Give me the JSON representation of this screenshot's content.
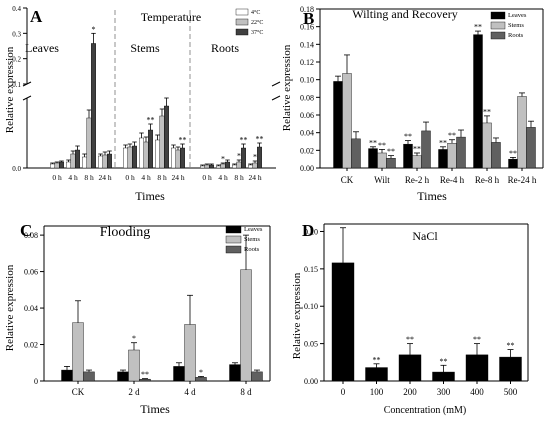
{
  "chart_data": [
    {
      "type": "bar",
      "panel_letter": "A",
      "title": "Temperature",
      "xlabel": "Times",
      "ylabel": "Relative expression",
      "legend": [
        "4°C",
        "22°C",
        "37°C"
      ],
      "legend_position": "top-right",
      "group_labels": [
        "Leaves",
        "Stems",
        "Roots"
      ],
      "categories": [
        "0 h",
        "4 h",
        "8 h",
        "24 h",
        "0 h",
        "4 h",
        "8 h",
        "24 h",
        "0 h",
        "4 h",
        "8 h",
        "24 h"
      ],
      "yticks": [
        "0.0",
        "0.1",
        "0.2",
        "0.3",
        "0.4"
      ],
      "ylim": [
        0,
        0.4
      ],
      "axis_break": true,
      "colors": [
        "#ffffff",
        "#c0c0c0",
        "#404040"
      ],
      "series": [
        {
          "name": "4°C",
          "values": [
            0.004,
            0.006,
            0.011,
            0.012,
            0.02,
            0.03,
            0.028,
            0.02,
            0.002,
            0.002,
            0.003,
            0.003
          ],
          "errors": [
            0.001,
            0.002,
            0.003,
            0.002,
            0.003,
            0.005,
            0.005,
            0.003,
            0.001,
            0.001,
            0.001,
            0.001
          ]
        },
        {
          "name": "22°C",
          "values": [
            0.005,
            0.014,
            0.05,
            0.013,
            0.021,
            0.026,
            0.052,
            0.018,
            0.003,
            0.004,
            0.006,
            0.005
          ],
          "errors": [
            0.001,
            0.003,
            0.008,
            0.003,
            0.003,
            0.005,
            0.007,
            0.003,
            0.001,
            0.001,
            0.002,
            0.002
          ]
        },
        {
          "name": "37°C",
          "values": [
            0.006,
            0.018,
            0.26,
            0.014,
            0.022,
            0.038,
            0.062,
            0.02,
            0.003,
            0.006,
            0.02,
            0.021
          ],
          "errors": [
            0.001,
            0.004,
            0.04,
            0.003,
            0.004,
            0.006,
            0.008,
            0.004,
            0.001,
            0.002,
            0.004,
            0.004
          ]
        }
      ],
      "significance": [
        {
          "series": 2,
          "index": 2,
          "mark": "*"
        },
        {
          "series": 2,
          "index": 5,
          "mark": "**"
        },
        {
          "series": 2,
          "index": 7,
          "mark": "**"
        },
        {
          "series": 1,
          "index": 9,
          "mark": "*"
        },
        {
          "series": 1,
          "index": 10,
          "mark": "*"
        },
        {
          "series": 2,
          "index": 10,
          "mark": "**"
        },
        {
          "series": 1,
          "index": 11,
          "mark": "*"
        },
        {
          "series": 2,
          "index": 11,
          "mark": "**"
        }
      ]
    },
    {
      "type": "bar",
      "panel_letter": "B",
      "title": "Wilting and Recovery",
      "xlabel": "Times",
      "ylabel": "Relative expression",
      "legend": [
        "Leaves",
        "Stems",
        "Roots"
      ],
      "legend_position": "top-right",
      "categories": [
        "CK",
        "Wilt",
        "Re-2 h",
        "Re-4 h",
        "Re-8 h",
        "Re-24 h"
      ],
      "yticks": [
        "0.00",
        "0.02",
        "0.04",
        "0.06",
        "0.08",
        "0.10",
        "0.12",
        "0.14",
        "0.16",
        "0.18"
      ],
      "ylim": [
        0,
        0.18
      ],
      "colors": [
        "#000000",
        "#c0c0c0",
        "#606060"
      ],
      "series": [
        {
          "name": "Leaves",
          "values": [
            0.098,
            0.022,
            0.027,
            0.021,
            0.151,
            0.01
          ],
          "errors": [
            0.006,
            0.002,
            0.004,
            0.003,
            0.004,
            0.002
          ]
        },
        {
          "name": "Stems",
          "values": [
            0.107,
            0.017,
            0.014,
            0.028,
            0.051,
            0.081
          ],
          "errors": [
            0.021,
            0.004,
            0.003,
            0.004,
            0.008,
            0.004
          ]
        },
        {
          "name": "Roots",
          "values": [
            0.033,
            0.011,
            0.042,
            0.035,
            0.029,
            0.046
          ],
          "errors": [
            0.008,
            0.003,
            0.01,
            0.008,
            0.005,
            0.007
          ]
        }
      ],
      "significance": [
        {
          "series": 0,
          "index": 1,
          "mark": "**"
        },
        {
          "series": 1,
          "index": 1,
          "mark": "**"
        },
        {
          "series": 2,
          "index": 1,
          "mark": "**"
        },
        {
          "series": 0,
          "index": 2,
          "mark": "**"
        },
        {
          "series": 1,
          "index": 2,
          "mark": "**"
        },
        {
          "series": 0,
          "index": 3,
          "mark": "**"
        },
        {
          "series": 1,
          "index": 3,
          "mark": "**"
        },
        {
          "series": 0,
          "index": 4,
          "mark": "**"
        },
        {
          "series": 1,
          "index": 4,
          "mark": "**"
        },
        {
          "series": 0,
          "index": 5,
          "mark": "**"
        }
      ]
    },
    {
      "type": "bar",
      "panel_letter": "C",
      "title": "Flooding",
      "xlabel": "Times",
      "ylabel": "Relative expression",
      "legend": [
        "Leaves",
        "Stems",
        "Roots"
      ],
      "legend_position": "top-right",
      "categories": [
        "CK",
        "2 d",
        "4 d",
        "8 d"
      ],
      "yticks": [
        "0",
        "0.02",
        "0.04",
        "0.06",
        "0.08"
      ],
      "ylim": [
        0,
        0.085
      ],
      "colors": [
        "#000000",
        "#c0c0c0",
        "#606060"
      ],
      "series": [
        {
          "name": "Leaves",
          "values": [
            0.006,
            0.005,
            0.008,
            0.009
          ],
          "errors": [
            0.002,
            0.001,
            0.002,
            0.001
          ]
        },
        {
          "name": "Stems",
          "values": [
            0.032,
            0.017,
            0.031,
            0.061
          ],
          "errors": [
            0.012,
            0.004,
            0.016,
            0.019
          ]
        },
        {
          "name": "Roots",
          "values": [
            0.005,
            0.001,
            0.002,
            0.005
          ],
          "errors": [
            0.001,
            0.0003,
            0.0005,
            0.001
          ]
        }
      ],
      "significance": [
        {
          "series": 1,
          "index": 1,
          "mark": "*"
        },
        {
          "series": 2,
          "index": 1,
          "mark": "**"
        },
        {
          "series": 2,
          "index": 2,
          "mark": "*"
        }
      ]
    },
    {
      "type": "bar",
      "panel_letter": "D",
      "title": "NaCl",
      "xlabel": "Concentration (mM)",
      "ylabel": "Relative expression",
      "categories": [
        "0",
        "100",
        "200",
        "300",
        "400",
        "500"
      ],
      "yticks": [
        "0.00",
        "0.05",
        "0.10",
        "0.15",
        "0.20"
      ],
      "ylim": [
        0,
        0.21
      ],
      "colors": [
        "#000000"
      ],
      "series": [
        {
          "values": [
            0.158,
            0.018,
            0.035,
            0.012,
            0.035,
            0.032
          ],
          "errors": [
            0.047,
            0.005,
            0.015,
            0.009,
            0.015,
            0.01
          ]
        }
      ],
      "significance": [
        {
          "series": 0,
          "index": 1,
          "mark": "**"
        },
        {
          "series": 0,
          "index": 2,
          "mark": "**"
        },
        {
          "series": 0,
          "index": 3,
          "mark": "**"
        },
        {
          "series": 0,
          "index": 4,
          "mark": "**"
        },
        {
          "series": 0,
          "index": 5,
          "mark": "**"
        }
      ]
    }
  ]
}
